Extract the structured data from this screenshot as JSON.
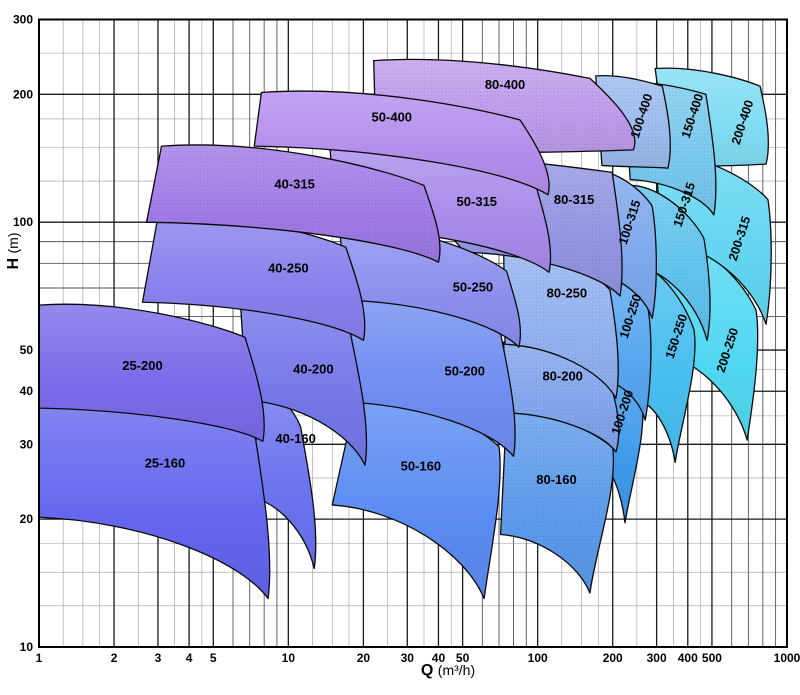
{
  "figure": {
    "kind": "pump-selection-range-chart"
  },
  "axes": {
    "x": {
      "title_bold": "Q",
      "title_unit": "(m³/h)",
      "scale": "log",
      "min": 1,
      "max": 1000,
      "ticks": [
        1,
        2,
        3,
        4,
        5,
        10,
        20,
        30,
        40,
        50,
        100,
        200,
        300,
        400,
        500,
        1000
      ]
    },
    "y": {
      "title_bold": "H",
      "title_unit": "(m)",
      "scale": "log",
      "min": 10,
      "max": 300,
      "ticks": [
        10,
        20,
        30,
        40,
        50,
        100,
        200,
        300
      ]
    }
  },
  "colors": {
    "background": "#ffffff",
    "frame": "#000000",
    "grid_major": "#1a1a1a",
    "grid_medium": "#555555",
    "grid_fraction": "#9a9a9a",
    "field_outline": "#0a0a0a",
    "label_text": "#000000"
  },
  "chart_data": {
    "type": "area",
    "title": "",
    "xlabel": "Q (m³/h)",
    "ylabel": "H (m)",
    "x_range": [
      1,
      1000
    ],
    "y_range": [
      10,
      300
    ],
    "grid": "log-log graph paper",
    "legend": "none",
    "description": "Centrifugal pump family selection chart; each shaded field is the Q-H operating envelope of one pump size. Corners given as [Q m3/h, H m]: bl=bottom-left, tl=top-left, tr=top-right, tip=bottom-right tip. label_at is the label anchor in data coords; label_angle in degrees.",
    "fields": [
      {
        "label": "200-250",
        "color": "#52D8F2",
        "dotted": false,
        "label_angle": -72,
        "bl": [
          282,
          50
        ],
        "tl": [
          312,
          91
        ],
        "tr": [
          752,
          62
        ],
        "tip": [
          692,
          30.7
        ],
        "label_at": [
          575,
          50
        ]
      },
      {
        "label": "200-315",
        "color": "#62D5F1",
        "dotted": false,
        "label_angle": -72,
        "bl": [
          315,
          90
        ],
        "tl": [
          296,
          144
        ],
        "tr": [
          839,
          113
        ],
        "tip": [
          824,
          57.5
        ],
        "label_at": [
          643,
          91.6
        ]
      },
      {
        "label": "200-400",
        "color": "#80DCF3",
        "dotted": false,
        "label_angle": -72,
        "bl": [
          333,
          136
        ],
        "tl": [
          296,
          230
        ],
        "tr": [
          780,
          209
        ],
        "tip": [
          824,
          137
        ],
        "label_at": [
          661,
          172
        ]
      },
      {
        "label": "150-250",
        "color": "#47BEEF",
        "dotted": false,
        "label_angle": -72,
        "bl": [
          253,
          38
        ],
        "tl": [
          231,
          80.5
        ],
        "tr": [
          424,
          55.7
        ],
        "tip": [
          356,
          27.2
        ],
        "label_at": [
          359,
          53.9
        ]
      },
      {
        "label": "150-315",
        "color": "#5FC4EF",
        "dotted": true,
        "label_angle": -72,
        "bl": [
          236,
          79.6
        ],
        "tl": [
          226,
          122
        ],
        "tr": [
          464,
          91.6
        ],
        "tip": [
          478,
          52.7
        ],
        "label_at": [
          386,
          110
        ]
      },
      {
        "label": "150-400",
        "color": "#79C9EF",
        "dotted": true,
        "label_angle": -72,
        "bl": [
          235,
          126
        ],
        "tl": [
          222,
          213
        ],
        "tr": [
          473,
          200
        ],
        "tip": [
          509,
          104
        ],
        "label_at": [
          416,
          178
        ]
      },
      {
        "label": "100-200",
        "color": "#3F9AEA",
        "dotted": false,
        "label_angle": -72,
        "bl": [
          171,
          27.9
        ],
        "tl": [
          162,
          45.3
        ],
        "tr": [
          262,
          38.5
        ],
        "tip": [
          224,
          19.6
        ],
        "label_at": [
          218,
          35.7
        ]
      },
      {
        "label": "100-250",
        "color": "#57A6F0",
        "dotted": false,
        "label_angle": -72,
        "bl": [
          181,
          42.5
        ],
        "tl": [
          178,
          75
        ],
        "tr": [
          277,
          62.8
        ],
        "tip": [
          270,
          34.2
        ],
        "label_at": [
          235,
          60.1
        ]
      },
      {
        "label": "100-315",
        "color": "#7CA8EC",
        "dotted": false,
        "label_angle": -72,
        "bl": [
          162,
          76.2
        ],
        "tl": [
          165,
          132
        ],
        "tr": [
          288,
          109
        ],
        "tip": [
          288,
          59.4
        ],
        "label_at": [
          233,
          100
        ]
      },
      {
        "label": "100-400",
        "color": "#9CBCEF",
        "dotted": true,
        "label_angle": -72,
        "bl": [
          181,
          136
        ],
        "tl": [
          171,
          221
        ],
        "tr": [
          316,
          209
        ],
        "tip": [
          333,
          134
        ],
        "label_at": [
          260,
          178
        ]
      },
      {
        "label": "80-160",
        "color": "#5C9BEC",
        "dotted": true,
        "label_angle": 0,
        "bl": [
          71,
          18.4
        ],
        "tl": [
          75,
          35.7
        ],
        "tr": [
          200,
          29.4
        ],
        "tip": [
          162,
          13.4
        ],
        "label_at": [
          119,
          24.8
        ]
      },
      {
        "label": "80-200",
        "color": "#82A5EE",
        "dotted": true,
        "label_angle": 0,
        "bl": [
          75,
          35.6
        ],
        "tl": [
          73,
          52.2
        ],
        "tr": [
          199,
          40.3
        ],
        "tip": [
          206,
          28.8
        ],
        "label_at": [
          126,
          43.4
        ]
      },
      {
        "label": "80-250",
        "color": "#92B2F0",
        "dotted": true,
        "label_angle": 0,
        "bl": [
          74,
          51.6
        ],
        "tl": [
          73,
          87.8
        ],
        "tr": [
          195,
          69.2
        ],
        "tip": [
          206,
          38.5
        ],
        "label_at": [
          131,
          68.1
        ]
      },
      {
        "label": "80-315",
        "color": "#9496E4",
        "dotted": true,
        "label_angle": 0,
        "bl": [
          51,
          85
        ],
        "tl": [
          24,
          141
        ],
        "tr": [
          199,
          131
        ],
        "tip": [
          214,
          67
        ],
        "label_at": [
          140,
          113
        ]
      },
      {
        "label": "80-400",
        "color": "#BF9CEC",
        "dotted": true,
        "label_angle": 0,
        "bl": [
          22.5,
          146
        ],
        "tl": [
          22,
          240
        ],
        "tr": [
          162,
          218
        ],
        "tip": [
          242,
          148
        ],
        "label_at": [
          74,
          211
        ]
      },
      {
        "label": "50-160",
        "color": "#5B8CF2",
        "dotted": false,
        "label_angle": 0,
        "bl": [
          15,
          21.6
        ],
        "tl": [
          18.7,
          38.7
        ],
        "tr": [
          70,
          29.6
        ],
        "tip": [
          61,
          13
        ],
        "label_at": [
          34,
          26.7
        ]
      },
      {
        "label": "50-200",
        "color": "#6F8DF1",
        "dotted": false,
        "label_angle": 0,
        "bl": [
          17,
          37.7
        ],
        "tl": [
          16.6,
          65.9
        ],
        "tr": [
          71,
          54.8
        ],
        "tip": [
          80,
          28.1
        ],
        "label_at": [
          51,
          44.6
        ]
      },
      {
        "label": "50-250",
        "color": "#8A8FEE",
        "dotted": false,
        "label_angle": 0,
        "bl": [
          17.2,
          65.5
        ],
        "tl": [
          16,
          97.3
        ],
        "tr": [
          75,
          76.7
        ],
        "tip": [
          84,
          50.8
        ],
        "label_at": [
          55,
          70.3
        ]
      },
      {
        "label": "50-315",
        "color": "#A78BEA",
        "dotted": false,
        "label_angle": 0,
        "bl": [
          15.7,
          96.8
        ],
        "tl": [
          14.7,
          148
        ],
        "tr": [
          98,
          123
        ],
        "tip": [
          111,
          76.2
        ],
        "label_at": [
          57,
          112
        ]
      },
      {
        "label": "50-400",
        "color": "#B48DEC",
        "dotted": false,
        "label_angle": 0,
        "bl": [
          7.3,
          151
        ],
        "tl": [
          7.8,
          202
        ],
        "tr": [
          85,
          174
        ],
        "tip": [
          110,
          116
        ],
        "label_at": [
          26,
          177
        ]
      },
      {
        "label": "40-160",
        "color": "#6A72EE",
        "dotted": false,
        "label_angle": 0,
        "bl": [
          7,
          22.5
        ],
        "tl": [
          7.8,
          40
        ],
        "tr": [
          11.2,
          33
        ],
        "tip": [
          12.7,
          15.3
        ],
        "label_at": [
          10.7,
          31
        ]
      },
      {
        "label": "40-200",
        "color": "#7577E9",
        "dotted": false,
        "label_angle": 0,
        "bl": [
          6.8,
          38.1
        ],
        "tl": [
          6.4,
          67
        ],
        "tr": [
          17.7,
          55.1
        ],
        "tip": [
          20.3,
          26.8
        ],
        "label_at": [
          12.6,
          45.1
        ]
      },
      {
        "label": "40-250",
        "color": "#8880EC",
        "dotted": false,
        "label_angle": 0,
        "bl": [
          2.6,
          64.8
        ],
        "tl": [
          3,
          103
        ],
        "tr": [
          17,
          87.3
        ],
        "tip": [
          20,
          52.7
        ],
        "label_at": [
          10,
          78
        ]
      },
      {
        "label": "40-315",
        "color": "#A17AE8",
        "dotted": true,
        "label_angle": 0,
        "bl": [
          2.7,
          100
        ],
        "tl": [
          3.1,
          151
        ],
        "tr": [
          35,
          122
        ],
        "tip": [
          40,
          80.5
        ],
        "label_at": [
          10.6,
          123
        ]
      },
      {
        "label": "25-160",
        "color": "#6366EE",
        "dotted": false,
        "label_angle": 0,
        "bl": [
          1,
          20.2
        ],
        "tl": [
          1,
          36.9
        ],
        "tr": [
          7.3,
          32.4
        ],
        "tip": [
          8.3,
          13
        ],
        "label_at": [
          3.2,
          27.1
        ]
      },
      {
        "label": "25-200",
        "color": "#7B6AE8",
        "dotted": false,
        "label_angle": 0,
        "bl": [
          1,
          36.5
        ],
        "tl": [
          1,
          63.8
        ],
        "tr": [
          6.7,
          53.6
        ],
        "tip": [
          7.9,
          30.5
        ],
        "label_at": [
          2.6,
          46
        ]
      }
    ]
  }
}
